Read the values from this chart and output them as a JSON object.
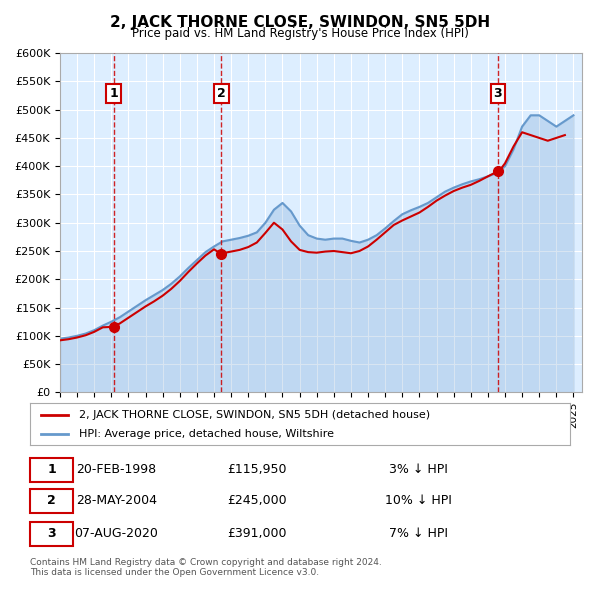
{
  "title": "2, JACK THORNE CLOSE, SWINDON, SN5 5DH",
  "subtitle": "Price paid vs. HM Land Registry's House Price Index (HPI)",
  "legend_line1": "2, JACK THORNE CLOSE, SWINDON, SN5 5DH (detached house)",
  "legend_line2": "HPI: Average price, detached house, Wiltshire",
  "sale_color": "#cc0000",
  "hpi_color": "#6699cc",
  "background_color": "#ddeeff",
  "plot_bg": "#ddeeff",
  "ylabel": "",
  "xlabel": "",
  "ylim": [
    0,
    600000
  ],
  "yticks": [
    0,
    50000,
    100000,
    150000,
    200000,
    250000,
    300000,
    350000,
    400000,
    450000,
    500000,
    550000,
    600000
  ],
  "ytick_labels": [
    "£0",
    "£50K",
    "£100K",
    "£150K",
    "£200K",
    "£250K",
    "£300K",
    "£350K",
    "£400K",
    "£450K",
    "£500K",
    "£550K",
    "£600K"
  ],
  "xmin": 1995.0,
  "xmax": 2025.5,
  "sales": [
    {
      "year": 1998.13,
      "price": 115950,
      "label": "1"
    },
    {
      "year": 2004.41,
      "price": 245000,
      "label": "2"
    },
    {
      "year": 2020.59,
      "price": 391000,
      "label": "3"
    }
  ],
  "sale_vlines": [
    1998.13,
    2004.41,
    2020.59
  ],
  "table_rows": [
    {
      "num": "1",
      "date": "20-FEB-1998",
      "price": "£115,950",
      "hpi": "3% ↓ HPI"
    },
    {
      "num": "2",
      "date": "28-MAY-2004",
      "price": "£245,000",
      "hpi": "10% ↓ HPI"
    },
    {
      "num": "3",
      "date": "07-AUG-2020",
      "price": "£391,000",
      "hpi": "7% ↓ HPI"
    }
  ],
  "footnote": "Contains HM Land Registry data © Crown copyright and database right 2024.\nThis data is licensed under the Open Government Licence v3.0.",
  "hpi_x": [
    1995.0,
    1995.5,
    1996.0,
    1996.5,
    1997.0,
    1997.5,
    1998.0,
    1998.5,
    1999.0,
    1999.5,
    2000.0,
    2000.5,
    2001.0,
    2001.5,
    2002.0,
    2002.5,
    2003.0,
    2003.5,
    2004.0,
    2004.5,
    2005.0,
    2005.5,
    2006.0,
    2006.5,
    2007.0,
    2007.5,
    2008.0,
    2008.5,
    2009.0,
    2009.5,
    2010.0,
    2010.5,
    2011.0,
    2011.5,
    2012.0,
    2012.5,
    2013.0,
    2013.5,
    2014.0,
    2014.5,
    2015.0,
    2015.5,
    2016.0,
    2016.5,
    2017.0,
    2017.5,
    2018.0,
    2018.5,
    2019.0,
    2019.5,
    2020.0,
    2020.5,
    2021.0,
    2021.5,
    2022.0,
    2022.5,
    2023.0,
    2023.5,
    2024.0,
    2024.5,
    2025.0
  ],
  "hpi_y": [
    95000,
    97000,
    100000,
    104000,
    110000,
    118000,
    125000,
    133000,
    143000,
    153000,
    163000,
    172000,
    181000,
    192000,
    205000,
    220000,
    234000,
    248000,
    258000,
    267000,
    270000,
    273000,
    277000,
    283000,
    300000,
    323000,
    335000,
    320000,
    295000,
    278000,
    272000,
    270000,
    272000,
    272000,
    268000,
    265000,
    270000,
    278000,
    290000,
    303000,
    315000,
    322000,
    328000,
    335000,
    345000,
    355000,
    362000,
    368000,
    373000,
    377000,
    382000,
    388000,
    400000,
    430000,
    470000,
    490000,
    490000,
    480000,
    470000,
    480000,
    490000
  ],
  "price_x": [
    1995.0,
    1995.5,
    1996.0,
    1996.5,
    1997.0,
    1997.5,
    1998.13,
    1998.5,
    1999.0,
    1999.5,
    2000.0,
    2000.5,
    2001.0,
    2001.5,
    2002.0,
    2002.5,
    2003.0,
    2003.5,
    2004.0,
    2004.41,
    2004.5,
    2005.0,
    2005.5,
    2006.0,
    2006.5,
    2007.0,
    2007.5,
    2008.0,
    2008.5,
    2009.0,
    2009.5,
    2010.0,
    2010.5,
    2011.0,
    2011.5,
    2012.0,
    2012.5,
    2013.0,
    2013.5,
    2014.0,
    2014.5,
    2015.0,
    2015.5,
    2016.0,
    2016.5,
    2017.0,
    2017.5,
    2018.0,
    2018.5,
    2019.0,
    2019.5,
    2020.0,
    2020.59,
    2020.75,
    2021.0,
    2021.5,
    2022.0,
    2022.5,
    2023.0,
    2023.5,
    2024.0,
    2024.5
  ],
  "price_y": [
    92000,
    94000,
    97000,
    101000,
    107000,
    115000,
    115950,
    122000,
    132000,
    142000,
    152000,
    161000,
    171000,
    183000,
    197000,
    213000,
    228000,
    242000,
    253000,
    245000,
    246000,
    249000,
    252000,
    257000,
    265000,
    282000,
    300000,
    288000,
    267000,
    252000,
    248000,
    247000,
    249000,
    250000,
    248000,
    246000,
    250000,
    258000,
    270000,
    283000,
    296000,
    304000,
    311000,
    318000,
    328000,
    339000,
    348000,
    356000,
    362000,
    367000,
    374000,
    382000,
    391000,
    395000,
    405000,
    435000,
    460000,
    455000,
    450000,
    445000,
    450000,
    455000
  ]
}
